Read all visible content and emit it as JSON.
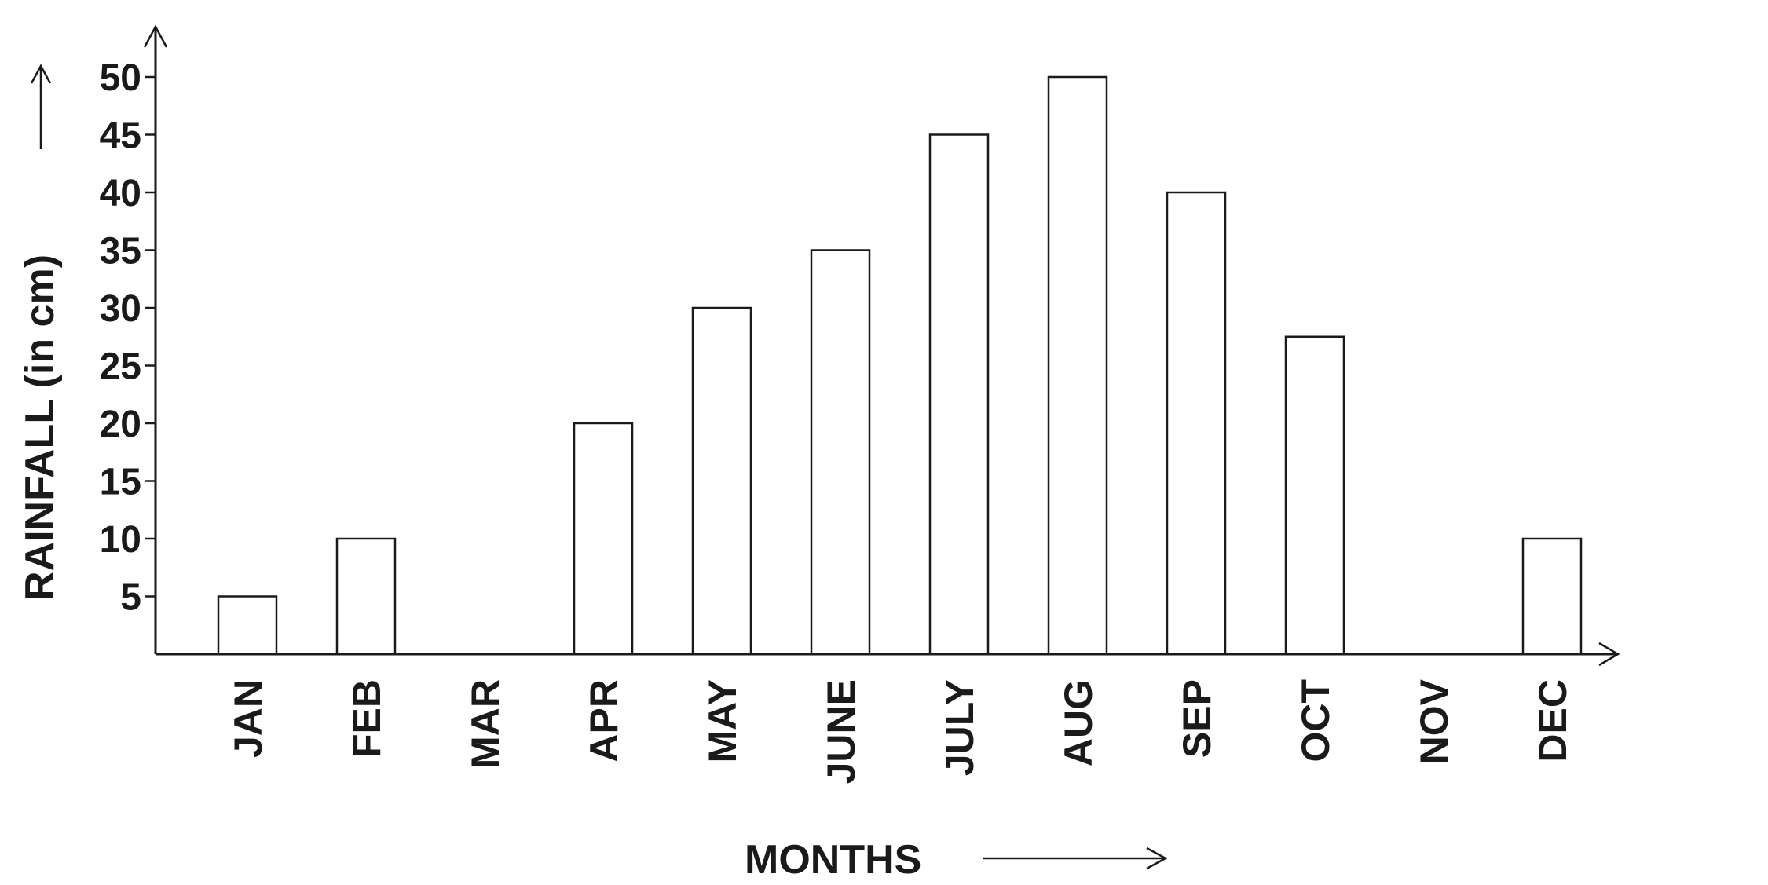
{
  "chart_data": {
    "type": "bar",
    "categories": [
      "JAN",
      "FEB",
      "MAR",
      "APR",
      "MAY",
      "JUNE",
      "JULY",
      "AUG",
      "SEP",
      "OCT",
      "NOV",
      "DEC"
    ],
    "values": [
      5,
      10,
      0,
      20,
      30,
      35,
      45,
      50,
      40,
      27.5,
      0,
      10
    ],
    "xlabel": "MONTHS",
    "ylabel": "RAINFALL (in cm)",
    "yticks": [
      5,
      10,
      15,
      20,
      25,
      30,
      35,
      40,
      45,
      50
    ],
    "ylim": [
      0,
      50
    ],
    "grid": false,
    "legend": "none",
    "bar_fill": "#ffffff",
    "bar_stroke": "#1a1a1a"
  }
}
